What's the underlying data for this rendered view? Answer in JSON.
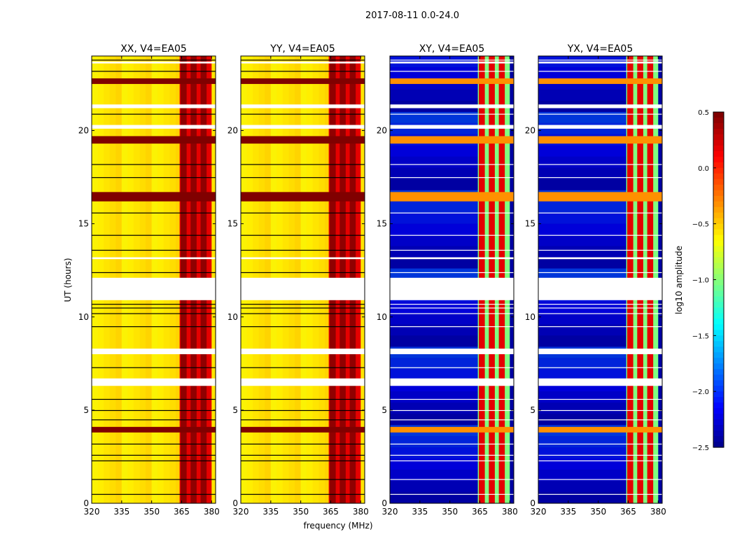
{
  "figure": {
    "suptitle": "2017-08-11 0.0-24.0",
    "xlabel": "frequency (MHz)",
    "ylabel": "UT (hours)"
  },
  "chart_data": {
    "type": "heatmap",
    "x_range": [
      320,
      382
    ],
    "y_range": [
      0,
      24
    ],
    "x_ticks": [
      320,
      335,
      350,
      365,
      380
    ],
    "y_ticks": [
      0,
      5,
      10,
      15,
      20
    ],
    "panels": [
      {
        "title": "XX, V4=EA05",
        "baseline": -0.55
      },
      {
        "title": "YY, V4=EA05",
        "baseline": -0.55
      },
      {
        "title": "XY, V4=EA05",
        "baseline": -2.4
      },
      {
        "title": "YX, V4=EA05",
        "baseline": -2.4
      }
    ],
    "rfi_band_mhz": [
      364,
      380
    ],
    "rfi_channels_mhz": [
      366,
      371,
      376
    ],
    "flagged_gaps_hours": [
      [
        10.9,
        12.1
      ],
      [
        20.1,
        20.3
      ],
      [
        8.0,
        8.3
      ],
      [
        6.3,
        6.7
      ],
      [
        13.1,
        13.2
      ],
      [
        21.2,
        21.4
      ],
      [
        23.6,
        23.7
      ]
    ],
    "high_amplitude_bands_hours": [
      [
        22.5,
        22.8
      ],
      [
        19.3,
        19.7
      ],
      [
        16.2,
        16.7
      ],
      [
        3.8,
        4.1
      ]
    ],
    "colorbar": {
      "label": "log10 amplitude",
      "range": [
        -2.5,
        0.5
      ],
      "ticks": [
        "0.5",
        "0.0",
        "−0.5",
        "−1.0",
        "−1.5",
        "−2.0",
        "−2.5"
      ],
      "colormap": "jet"
    }
  }
}
